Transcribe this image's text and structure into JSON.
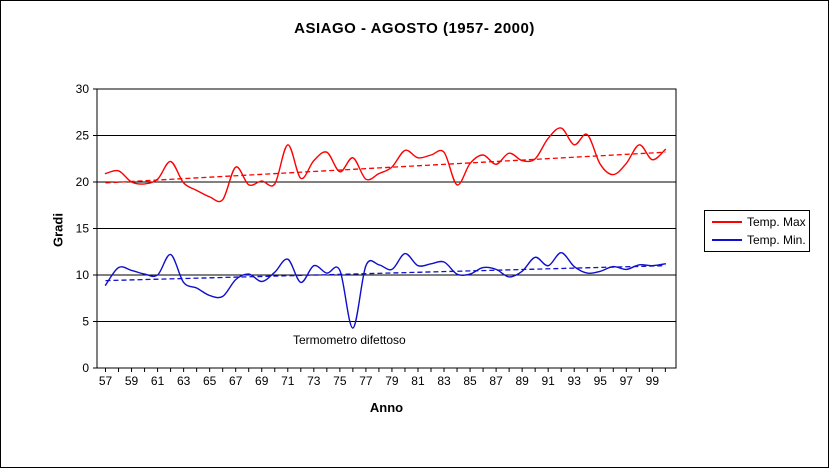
{
  "window": {
    "background": "#FFFFFF",
    "border_color": "#000000"
  },
  "chart_data": {
    "type": "line",
    "title": "ASIAGO - AGOSTO (1957- 2000)",
    "xlabel": "Anno",
    "ylabel": "Gradi",
    "ylim": [
      0,
      30
    ],
    "y_ticks": [
      0,
      5,
      10,
      15,
      20,
      25,
      30
    ],
    "y_gridlines": [
      5,
      10,
      15,
      20,
      25
    ],
    "grid": "horizontal only",
    "legend_position": "right-outside",
    "x": [
      1957,
      1958,
      1959,
      1960,
      1961,
      1962,
      1963,
      1964,
      1965,
      1966,
      1967,
      1968,
      1969,
      1970,
      1971,
      1972,
      1973,
      1974,
      1975,
      1976,
      1977,
      1978,
      1979,
      1980,
      1981,
      1982,
      1983,
      1984,
      1985,
      1986,
      1987,
      1988,
      1989,
      1990,
      1991,
      1992,
      1993,
      1994,
      1995,
      1996,
      1997,
      1998,
      1999,
      2000
    ],
    "x_tick_labels": [
      "57",
      "59",
      "61",
      "63",
      "65",
      "67",
      "69",
      "71",
      "73",
      "75",
      "77",
      "79",
      "81",
      "83",
      "85",
      "87",
      "89",
      "91",
      "93",
      "95",
      "97",
      "99"
    ],
    "series": [
      {
        "name": "Temp. Max",
        "color": "#FF0000",
        "style": "smooth-solid",
        "values": [
          20.9,
          21.2,
          20.0,
          19.8,
          20.3,
          22.2,
          19.9,
          19.1,
          18.4,
          18.1,
          21.6,
          19.7,
          20.1,
          19.8,
          24.0,
          20.4,
          22.3,
          23.2,
          21.1,
          22.6,
          20.3,
          20.9,
          21.6,
          23.4,
          22.6,
          22.9,
          23.2,
          19.7,
          22.0,
          22.9,
          21.9,
          23.1,
          22.3,
          22.5,
          24.7,
          25.8,
          24.0,
          25.1,
          21.9,
          20.8,
          22.0,
          24.0,
          22.4,
          23.5
        ]
      },
      {
        "name": "Temp. Min.",
        "color": "#0F0FCC",
        "style": "smooth-solid",
        "values": [
          8.9,
          10.8,
          10.5,
          10.1,
          10.0,
          12.2,
          9.2,
          8.6,
          7.8,
          7.7,
          9.5,
          10.1,
          9.3,
          10.3,
          11.7,
          9.2,
          11.0,
          10.2,
          10.5,
          4.3,
          11.0,
          11.1,
          10.6,
          12.3,
          11.0,
          11.2,
          11.4,
          10.1,
          10.1,
          10.8,
          10.6,
          9.8,
          10.4,
          11.9,
          11.0,
          12.4,
          10.9,
          10.2,
          10.4,
          10.9,
          10.6,
          11.1,
          11.0,
          11.2
        ]
      }
    ],
    "trendlines": [
      {
        "series": "Temp. Max",
        "color": "#FF0000",
        "style": "dashed",
        "start_value": 19.9,
        "end_value": 23.2
      },
      {
        "series": "Temp. Min.",
        "color": "#0F0FCC",
        "style": "dashed",
        "start_value": 9.4,
        "end_value": 11.0
      }
    ],
    "annotation": {
      "text": "Termometro difettoso",
      "year": 1976,
      "series": "Temp. Min."
    }
  },
  "legend": {
    "items": [
      {
        "label": "Temp. Max",
        "color": "#FF0000"
      },
      {
        "label": "Temp. Min.",
        "color": "#0F0FCC"
      }
    ]
  }
}
